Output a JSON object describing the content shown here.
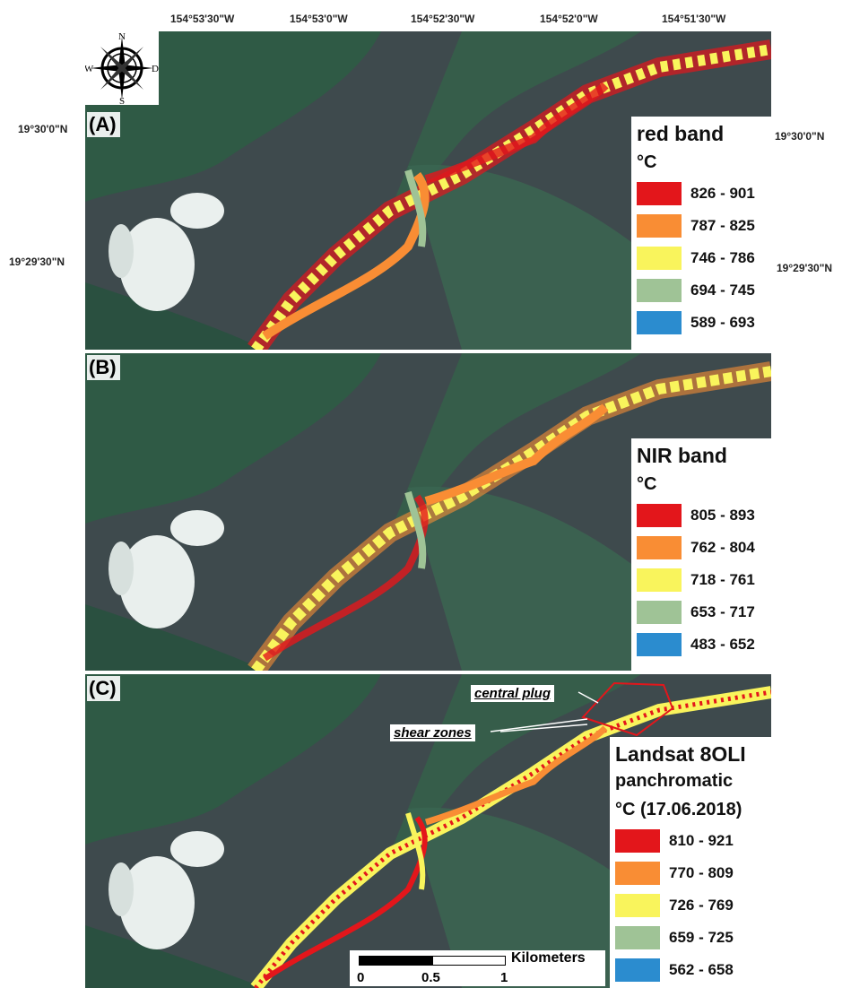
{
  "lon_ticks": [
    "154°53'30\"W",
    "154°53'0\"W",
    "154°52'30\"W",
    "154°52'0\"W",
    "154°51'30\"W"
  ],
  "lat_ticks": [
    "19°30'0\"N",
    "19°29'30\"N"
  ],
  "compass": {
    "n": "N",
    "s": "S",
    "w": "W",
    "e": "D"
  },
  "panels": [
    {
      "label": "(A)",
      "legend": {
        "title": "red band",
        "unit": "°C",
        "classes": [
          {
            "range": "826 - 901",
            "color": "#e3161b"
          },
          {
            "range": "787 - 825",
            "color": "#f98d34"
          },
          {
            "range": "746 - 786",
            "color": "#f9f45c"
          },
          {
            "range": "694 - 745",
            "color": "#9fc396"
          },
          {
            "range": "589 - 693",
            "color": "#2b8ccf"
          }
        ]
      }
    },
    {
      "label": "(B)",
      "legend": {
        "title": "NIR band",
        "unit": "°C",
        "classes": [
          {
            "range": "805 - 893",
            "color": "#e3161b"
          },
          {
            "range": "762 - 804",
            "color": "#f98d34"
          },
          {
            "range": "718 - 761",
            "color": "#f9f45c"
          },
          {
            "range": "653 - 717",
            "color": "#9fc396"
          },
          {
            "range": "483 - 652",
            "color": "#2b8ccf"
          }
        ]
      }
    },
    {
      "label": "(C)",
      "legend": {
        "title": "Landsat 8OLI",
        "subtitle": "panchromatic",
        "unit": "°C (17.06.2018)",
        "classes": [
          {
            "range": "810 - 921",
            "color": "#e3161b"
          },
          {
            "range": "770 - 809",
            "color": "#f98d34"
          },
          {
            "range": "726 - 769",
            "color": "#f9f45c"
          },
          {
            "range": "659 - 725",
            "color": "#9fc396"
          },
          {
            "range": "562 - 658",
            "color": "#2b8ccf"
          }
        ]
      },
      "annotations": {
        "central_plug": "central plug",
        "shear_zones": "shear zones"
      }
    }
  ],
  "scalebar": {
    "ticks": [
      "0",
      "0.5",
      "1"
    ],
    "unit": "Kilometers"
  }
}
